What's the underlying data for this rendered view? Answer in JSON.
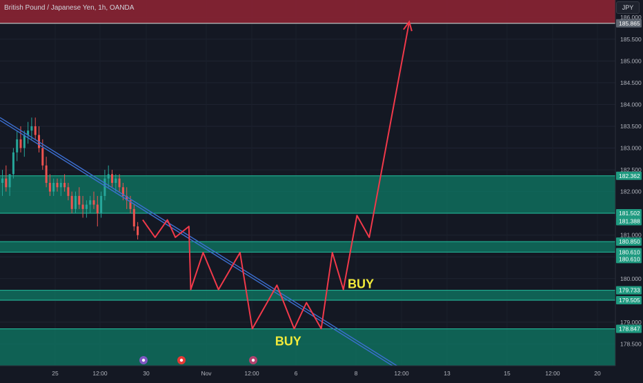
{
  "header": {
    "symbol_title": "British Pound / Japanese Yen, 1h, OANDA",
    "currency_button": "JPY"
  },
  "colors": {
    "background": "#141823",
    "zone_green": "#0e7a66",
    "zone_border": "#22c2a0",
    "resistance_red": "#8a2433",
    "arrow_red": "#f2394a",
    "trendline_blue": "#3c6fd1",
    "buy_yellow": "#f2ea3a",
    "candle_up": "#26a69a",
    "candle_down": "#ef5350"
  },
  "chart_data": {
    "type": "candlestick",
    "symbol": "GBPJPY",
    "timeframe": "1h",
    "broker": "OANDA",
    "ylim": [
      178.0,
      186.4
    ],
    "y_ticks": [
      "186.000",
      "185.500",
      "185.000",
      "184.500",
      "184.000",
      "183.500",
      "183.000",
      "182.500",
      "182.000",
      "181.500",
      "181.000",
      "180.500",
      "180.000",
      "179.500",
      "179.000",
      "178.500"
    ],
    "x_ticks": [
      "25",
      "12:00",
      "30",
      "Nov",
      "12:00",
      "6",
      "8",
      "12:00",
      "13",
      "15",
      "12:00",
      "20"
    ],
    "price_labels": [
      "185.865",
      "182.362",
      "181.502",
      "181.388",
      "180.850",
      "180.610",
      "180.610",
      "179.733",
      "179.505",
      "178.847"
    ],
    "candles_ohlc": [
      [
        182.2,
        182.5,
        181.9,
        182.3
      ],
      [
        182.3,
        182.6,
        182.0,
        182.1
      ],
      [
        182.1,
        182.4,
        181.9,
        182.4
      ],
      [
        182.4,
        183.0,
        182.3,
        182.9
      ],
      [
        182.9,
        183.4,
        182.7,
        183.2
      ],
      [
        183.2,
        183.5,
        182.9,
        183.0
      ],
      [
        183.0,
        183.4,
        182.8,
        183.3
      ],
      [
        183.3,
        183.6,
        183.1,
        183.4
      ],
      [
        183.4,
        183.7,
        183.2,
        183.5
      ],
      [
        183.5,
        183.7,
        183.2,
        183.3
      ],
      [
        183.3,
        183.5,
        182.9,
        183.0
      ],
      [
        183.0,
        183.2,
        182.5,
        182.6
      ],
      [
        182.6,
        182.8,
        182.1,
        182.2
      ],
      [
        182.2,
        182.4,
        181.9,
        182.0
      ],
      [
        182.0,
        182.3,
        181.9,
        182.2
      ],
      [
        182.2,
        182.3,
        182.0,
        182.1
      ],
      [
        182.1,
        182.3,
        181.9,
        182.2
      ],
      [
        182.2,
        182.4,
        182.0,
        182.1
      ],
      [
        182.1,
        182.2,
        181.8,
        181.9
      ],
      [
        181.9,
        182.0,
        181.5,
        181.6
      ],
      [
        181.6,
        182.0,
        181.5,
        181.9
      ],
      [
        181.9,
        182.1,
        181.6,
        181.7
      ],
      [
        181.7,
        181.9,
        181.4,
        181.6
      ],
      [
        181.6,
        181.8,
        181.4,
        181.7
      ],
      [
        181.7,
        181.9,
        181.5,
        181.8
      ],
      [
        181.8,
        182.0,
        181.6,
        181.7
      ],
      [
        181.7,
        181.9,
        181.2,
        181.5
      ],
      [
        181.5,
        182.0,
        181.4,
        181.9
      ],
      [
        181.9,
        182.5,
        181.8,
        182.3
      ],
      [
        182.3,
        182.6,
        182.1,
        182.4
      ],
      [
        182.4,
        182.5,
        182.1,
        182.2
      ],
      [
        182.2,
        182.4,
        182.0,
        182.3
      ],
      [
        182.3,
        182.4,
        182.0,
        182.1
      ],
      [
        182.1,
        182.2,
        181.8,
        181.9
      ],
      [
        181.9,
        182.1,
        181.6,
        181.8
      ],
      [
        181.8,
        181.9,
        181.5,
        181.6
      ],
      [
        181.6,
        181.7,
        181.1,
        181.2
      ],
      [
        181.2,
        181.3,
        180.9,
        181.0
      ]
    ],
    "zones": [
      {
        "kind": "resistance",
        "low": 185.865,
        "high": 186.4
      },
      {
        "kind": "support",
        "low": 181.502,
        "high": 182.362
      },
      {
        "kind": "support",
        "low": 180.61,
        "high": 180.85
      },
      {
        "kind": "support",
        "low": 179.505,
        "high": 179.733
      },
      {
        "kind": "support",
        "low": 178.0,
        "high": 178.847
      }
    ],
    "trendline": [
      [
        183.7,
        0.0
      ],
      [
        178.0,
        0.645
      ]
    ],
    "projection_path": [
      [
        0.232,
        181.35
      ],
      [
        0.252,
        180.95
      ],
      [
        0.272,
        181.35
      ],
      [
        0.285,
        180.95
      ],
      [
        0.307,
        181.2
      ],
      [
        0.31,
        179.75
      ],
      [
        0.33,
        180.6
      ],
      [
        0.355,
        179.75
      ],
      [
        0.39,
        180.6
      ],
      [
        0.41,
        178.85
      ],
      [
        0.45,
        179.85
      ],
      [
        0.478,
        178.85
      ],
      [
        0.498,
        179.45
      ],
      [
        0.522,
        178.85
      ],
      [
        0.54,
        180.6
      ],
      [
        0.558,
        179.75
      ],
      [
        0.58,
        181.45
      ],
      [
        0.6,
        180.95
      ],
      [
        0.665,
        185.9
      ]
    ],
    "annotations": [
      {
        "text": "BUY",
        "y": 179.78,
        "x_frac": 0.565
      },
      {
        "text": "BUY",
        "y": 178.82,
        "x_frac": 0.447
      }
    ]
  }
}
